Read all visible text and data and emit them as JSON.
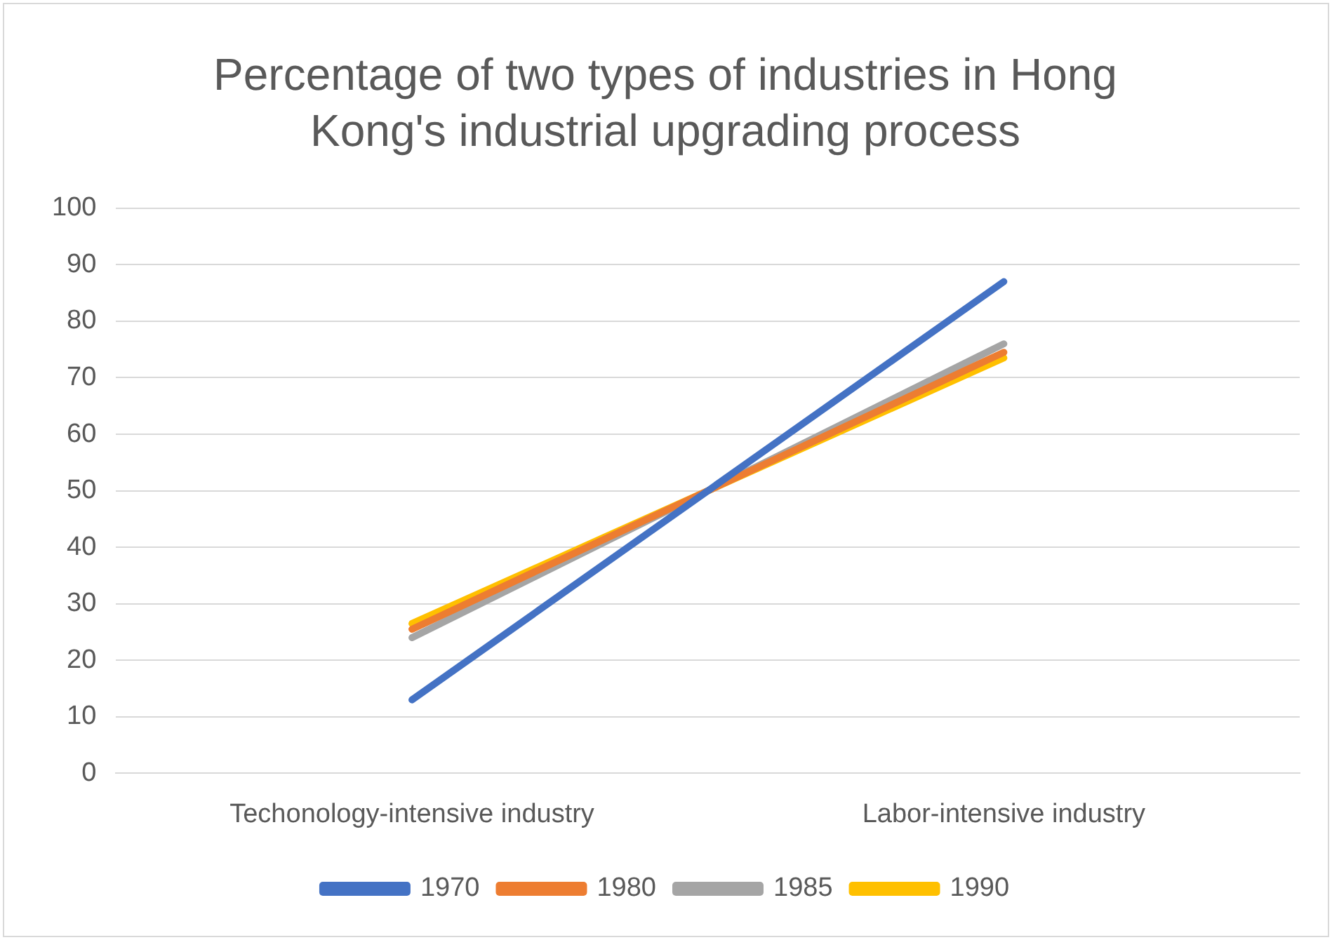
{
  "chart_data": {
    "type": "line",
    "title": "Percentage of two types of industries in Hong Kong's industrial upgrading process",
    "categories": [
      "Techonology-intensive industry",
      "Labor-intensive industry"
    ],
    "series": [
      {
        "name": "1970",
        "color": "#4472c4",
        "values": [
          13,
          87
        ]
      },
      {
        "name": "1980",
        "color": "#ed7d31",
        "values": [
          25.5,
          74.5
        ]
      },
      {
        "name": "1985",
        "color": "#a5a5a5",
        "values": [
          24,
          76
        ]
      },
      {
        "name": "1990",
        "color": "#ffc000",
        "values": [
          26.5,
          73.5
        ]
      }
    ],
    "ylim": [
      0,
      100
    ],
    "yticks": [
      0,
      10,
      20,
      30,
      40,
      50,
      60,
      70,
      80,
      90,
      100
    ],
    "grid": "y",
    "legend": "bottom",
    "marker": "none",
    "line_style": "solid"
  }
}
